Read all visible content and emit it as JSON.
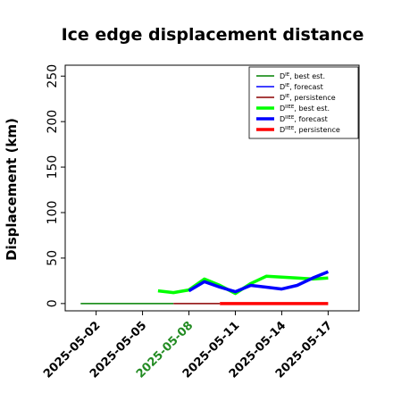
{
  "chart_data": {
    "type": "line",
    "title": "Ice edge displacement distance",
    "xlabel": "",
    "ylabel": "Displacement (km)",
    "ylim": [
      -8,
      262
    ],
    "yticks": [
      0,
      50,
      100,
      150,
      200,
      250
    ],
    "xlim": [
      "2025-04-30",
      "2025-05-19"
    ],
    "xticks": [
      "2025-05-02",
      "2025-05-05",
      "2025-05-08",
      "2025-05-11",
      "2025-05-14",
      "2025-05-17"
    ],
    "xtick_highlight": {
      "label": "2025-05-08",
      "color": "#228b22"
    },
    "grid": false,
    "legend_position": "top-right",
    "series": [
      {
        "name_main": "D",
        "name_sup": "IE",
        "name_rest": ", best est.",
        "color": "#008000",
        "width": "thin",
        "x": [
          "2025-05-01",
          "2025-05-07"
        ],
        "y": [
          0,
          0
        ]
      },
      {
        "name_main": "D",
        "name_sup": "IE",
        "name_rest": ", forecast",
        "color": "#0000ff",
        "width": "thin",
        "x": [],
        "y": []
      },
      {
        "name_main": "D",
        "name_sup": "IE",
        "name_rest": ", persistence",
        "color": "#8b0000",
        "width": "thin",
        "x": [
          "2025-05-07",
          "2025-05-10"
        ],
        "y": [
          0,
          0
        ]
      },
      {
        "name_main": "D",
        "name_sup": "IIEE",
        "name_rest": ", best est.",
        "color": "#00ff00",
        "width": "thick",
        "x": [
          "2025-05-06",
          "2025-05-07",
          "2025-05-08",
          "2025-05-09",
          "2025-05-10",
          "2025-05-11",
          "2025-05-12",
          "2025-05-13",
          "2025-05-14",
          "2025-05-15",
          "2025-05-16",
          "2025-05-17"
        ],
        "y": [
          14,
          12,
          15,
          27,
          20,
          11,
          22,
          30,
          29,
          28,
          27,
          28
        ]
      },
      {
        "name_main": "D",
        "name_sup": "IIEE",
        "name_rest": ", forecast",
        "color": "#0000ff",
        "width": "thick",
        "x": [
          "2025-05-08",
          "2025-05-09",
          "2025-05-10",
          "2025-05-11",
          "2025-05-12",
          "2025-05-13",
          "2025-05-14",
          "2025-05-15",
          "2025-05-16",
          "2025-05-17"
        ],
        "y": [
          14,
          24,
          18,
          13,
          20,
          18,
          16,
          20,
          28,
          35
        ]
      },
      {
        "name_main": "D",
        "name_sup": "IIEE",
        "name_rest": ", persistence",
        "color": "#ff0000",
        "width": "thick",
        "x": [
          "2025-05-10",
          "2025-05-17"
        ],
        "y": [
          0,
          0
        ]
      }
    ]
  }
}
